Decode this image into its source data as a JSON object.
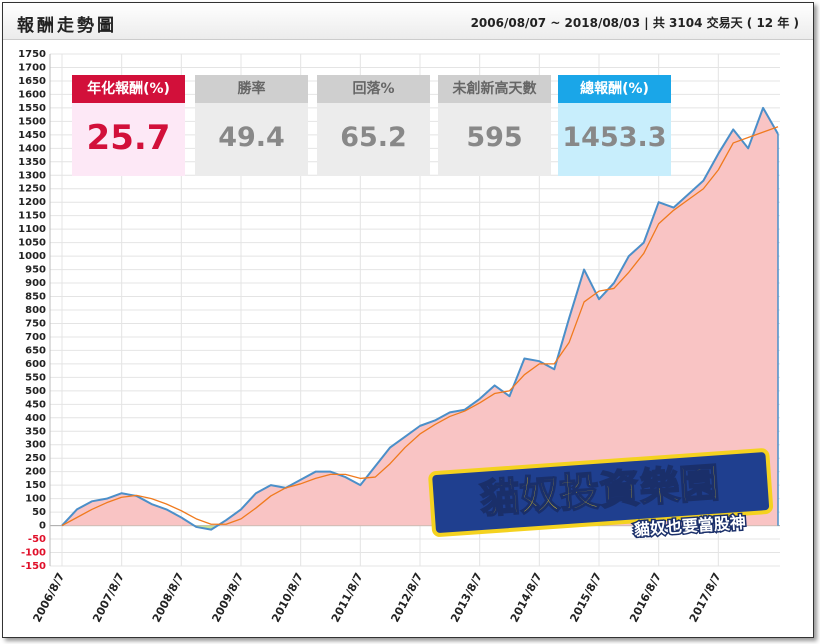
{
  "header": {
    "title": "報酬走勢圖",
    "range": "2006/08/07 ~ 2018/08/03 | 共 3104 交易天 ( 12 年 )"
  },
  "stats": [
    {
      "label": "年化報酬(%)",
      "value": 25.7
    },
    {
      "label": "勝率",
      "value": 49.4
    },
    {
      "label": "回落%",
      "value": 65.2
    },
    {
      "label": "未創新高天數",
      "value": 595
    },
    {
      "label": "總報酬(%)",
      "value": 1453.3
    }
  ],
  "logo": {
    "title": "貓奴投資樂園",
    "subtitle": "貓奴也要當股神"
  },
  "chart_data": {
    "type": "line",
    "categories": [
      "2006/8/7",
      null,
      null,
      null,
      "2007/8/7",
      null,
      null,
      null,
      "2008/8/7",
      null,
      null,
      null,
      "2009/8/7",
      null,
      null,
      null,
      "2010/8/7",
      null,
      null,
      null,
      "2011/8/7",
      null,
      null,
      null,
      "2012/8/7",
      null,
      null,
      null,
      "2013/8/7",
      null,
      null,
      null,
      "2014/8/7",
      null,
      null,
      null,
      "2015/8/7",
      null,
      null,
      null,
      "2016/8/7",
      null,
      null,
      null,
      "2017/8/7",
      null,
      null,
      null,
      null
    ],
    "series": [
      {
        "color": "#4b8fc9",
        "values": [
          0,
          60,
          90,
          100,
          120,
          110,
          80,
          60,
          30,
          -5,
          -15,
          20,
          60,
          120,
          150,
          140,
          170,
          200,
          200,
          180,
          150,
          220,
          290,
          330,
          370,
          390,
          420,
          430,
          470,
          520,
          480,
          620,
          610,
          580,
          770,
          950,
          840,
          900,
          1000,
          1050,
          1200,
          1180,
          1230,
          1280,
          1380,
          1470,
          1400,
          1550,
          1453.3
        ]
      },
      {
        "color": "#f07a1e",
        "values": [
          0,
          30,
          60,
          85,
          105,
          112,
          100,
          80,
          55,
          25,
          5,
          5,
          25,
          65,
          110,
          140,
          155,
          175,
          190,
          190,
          175,
          180,
          230,
          290,
          340,
          375,
          405,
          425,
          455,
          490,
          500,
          560,
          600,
          600,
          680,
          830,
          870,
          880,
          940,
          1010,
          1120,
          1170,
          1210,
          1250,
          1320,
          1420,
          1440,
          1460,
          1480
        ]
      }
    ],
    "area_color": "#f9c4c4",
    "negative_area_color": "#c6e49a",
    "ylim": [
      -150,
      1750
    ],
    "yticks": [
      -150,
      -100,
      -50,
      0,
      50,
      100,
      150,
      200,
      250,
      300,
      350,
      400,
      450,
      500,
      550,
      600,
      650,
      700,
      750,
      800,
      850,
      900,
      950,
      1000,
      1050,
      1100,
      1150,
      1200,
      1250,
      1300,
      1350,
      1400,
      1450,
      1500,
      1550,
      1600,
      1650,
      1700,
      1750
    ],
    "grid": true
  }
}
